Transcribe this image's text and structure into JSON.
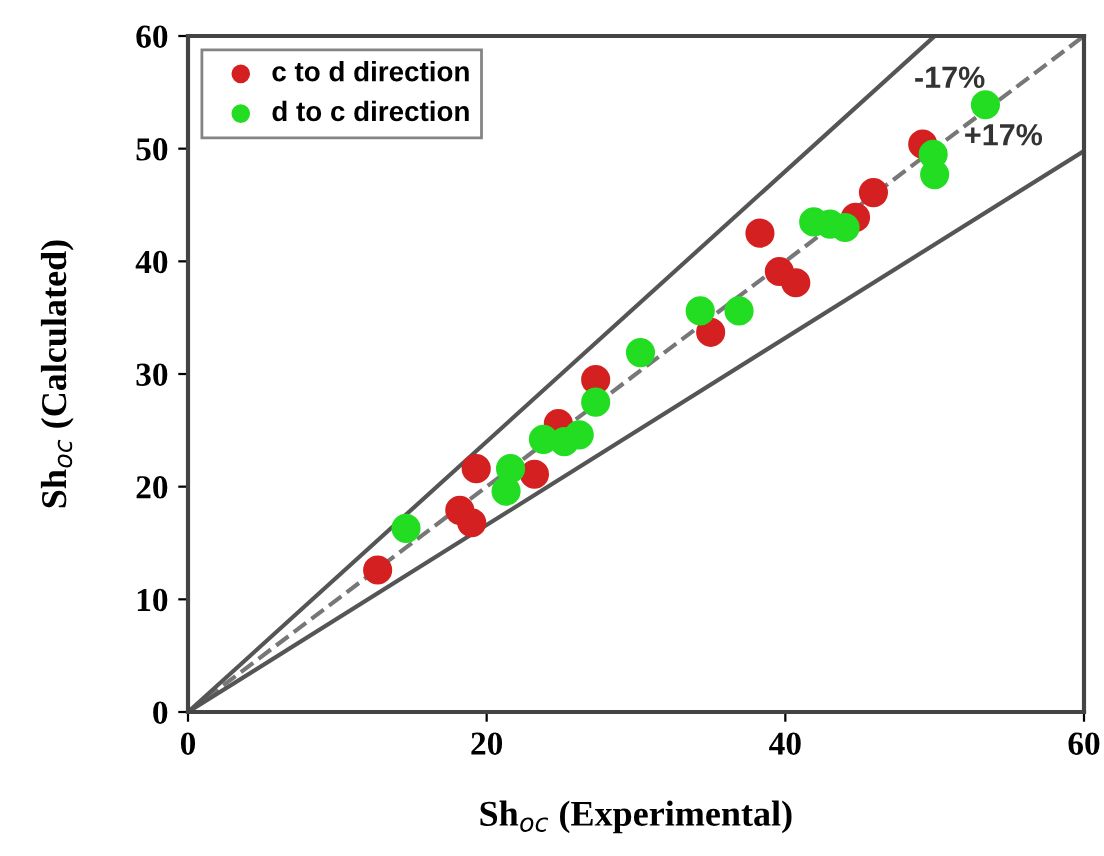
{
  "chart_data": {
    "type": "scatter",
    "xlabel": "Sh$_{oc}$ (Experimental)",
    "ylabel": "Sh$_{oc}$ (Calculated)",
    "xlim": [
      0,
      60
    ],
    "ylim": [
      0,
      60
    ],
    "xticks": [
      0,
      20,
      40,
      60
    ],
    "yticks": [
      0,
      10,
      20,
      30,
      40,
      50,
      60
    ],
    "grid": false,
    "legend": "top left",
    "marker": "circle",
    "annotations": [
      "-17%",
      "+17%"
    ],
    "series": [
      {
        "type": "line",
        "x": [
          0,
          60
        ],
        "values": [
          0,
          60
        ],
        "color": "#777777",
        "line_style": "dashed",
        "marker": "none"
      },
      {
        "type": "line",
        "x": [
          0,
          50
        ],
        "values": [
          0,
          60
        ],
        "color": "#555555",
        "line_style": "solid",
        "marker": "none"
      },
      {
        "type": "line",
        "x": [
          0,
          60
        ],
        "values": [
          0,
          49.8
        ],
        "color": "#555555",
        "line_style": "solid",
        "marker": "none"
      },
      {
        "name": "c to d direction",
        "color": "#d42020",
        "x": [
          12.7,
          19.3,
          18.2,
          19.0,
          23.2,
          24.8,
          27.3,
          35.0,
          38.3,
          39.6,
          40.7,
          44.7,
          45.9,
          49.2
        ],
        "values": [
          12.6,
          21.6,
          17.9,
          16.8,
          21.1,
          25.6,
          29.5,
          33.7,
          42.5,
          39.1,
          38.1,
          43.9,
          46.1,
          50.4
        ]
      },
      {
        "name": "d to c direction",
        "color": "#22dd22",
        "x": [
          14.6,
          21.6,
          21.3,
          23.8,
          25.2,
          26.2,
          27.3,
          30.3,
          34.3,
          36.9,
          41.9,
          43.0,
          44.0,
          49.9,
          50.0,
          53.4
        ],
        "values": [
          16.3,
          21.6,
          19.6,
          24.2,
          24.0,
          24.6,
          27.5,
          31.9,
          35.6,
          35.6,
          43.5,
          43.3,
          43.0,
          49.5,
          47.7,
          53.9
        ]
      }
    ]
  }
}
